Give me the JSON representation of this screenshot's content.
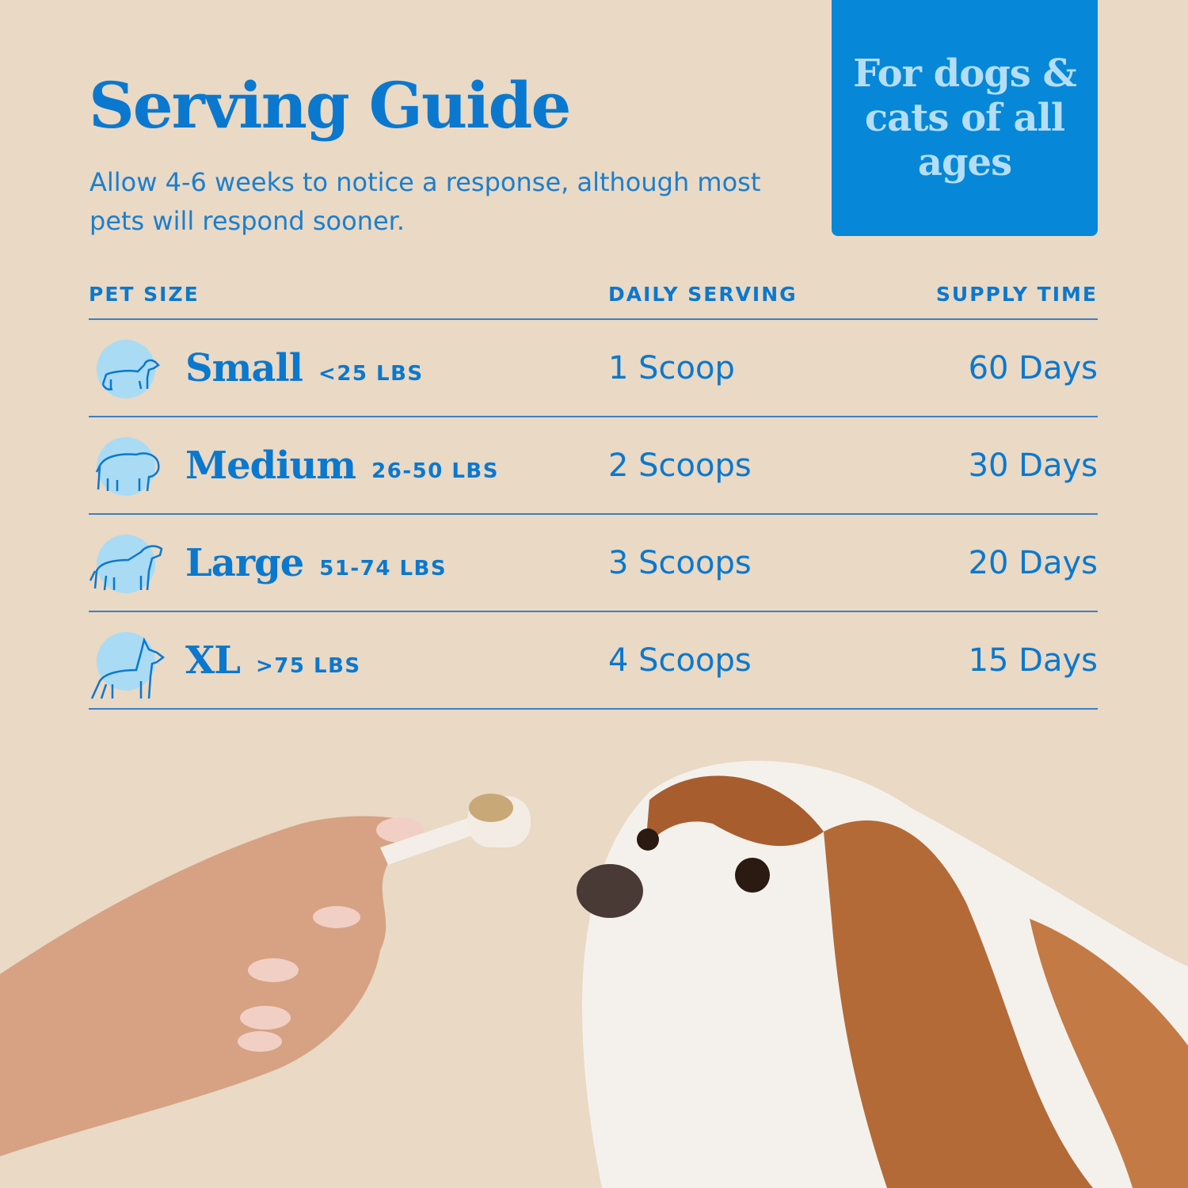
{
  "title": "Serving Guide",
  "subtitle": "Allow 4-6 weeks to notice a response, although most pets will respond sooner.",
  "badge": {
    "text": "For dogs & cats of all ages"
  },
  "colors": {
    "background": "#e9d9c5",
    "accent_blue": "#0a78cf",
    "badge_blue": "#0787d8",
    "light_blue": "#a9dbf4"
  },
  "table": {
    "headers": [
      "PET SIZE",
      "DAILY SERVING",
      "SUPPLY TIME"
    ],
    "rows": [
      {
        "icon": "dachshund-icon",
        "size": "Small",
        "weight": "<25 LBS",
        "serving": "1 Scoop",
        "supply": "60 Days"
      },
      {
        "icon": "bulldog-icon",
        "size": "Medium",
        "weight": "26-50 LBS",
        "serving": "2 Scoops",
        "supply": "30 Days"
      },
      {
        "icon": "retriever-icon",
        "size": "Large",
        "weight": "51-74 LBS",
        "serving": "3 Scoops",
        "supply": "20 Days"
      },
      {
        "icon": "doberman-icon",
        "size": "XL",
        "weight": ">75 LBS",
        "serving": "4 Scoops",
        "supply": "15 Days"
      }
    ]
  }
}
